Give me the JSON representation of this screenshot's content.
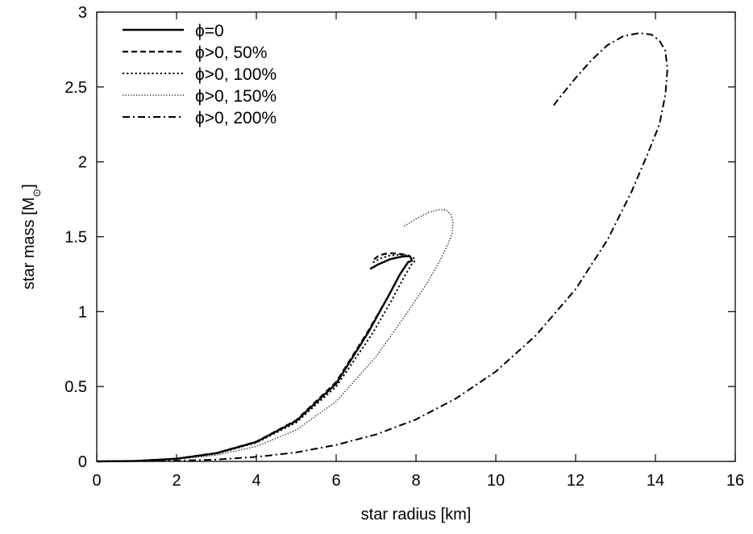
{
  "chart_data": {
    "type": "line",
    "title": "",
    "xlabel": "star radius [km]",
    "ylabel_main": "star mass [M",
    "ylabel_sub": "⊙",
    "ylabel_close": "]",
    "xlim": [
      0,
      16
    ],
    "ylim": [
      0,
      3
    ],
    "xticks": [
      0,
      2,
      4,
      6,
      8,
      10,
      12,
      14,
      16
    ],
    "yticks": [
      0,
      0.5,
      1,
      1.5,
      2,
      2.5,
      3
    ],
    "ytick_labels": [
      "0",
      "0.5",
      "1",
      "1.5",
      "2",
      "2.5",
      "3"
    ],
    "grid": false,
    "legend_position": "top-left",
    "series": [
      {
        "name": "ϕ=0",
        "dash": "solid",
        "x": [
          0,
          1,
          2,
          3,
          4,
          5,
          6,
          6.8,
          7.3,
          7.6,
          7.8,
          7.9,
          7.85,
          7.75,
          7.6,
          7.35,
          7.05,
          6.85
        ],
        "y": [
          0,
          0.003,
          0.018,
          0.055,
          0.13,
          0.27,
          0.52,
          0.86,
          1.1,
          1.25,
          1.33,
          1.34,
          1.37,
          1.37,
          1.365,
          1.35,
          1.315,
          1.285
        ]
      },
      {
        "name": "ϕ>0, 50%",
        "dash": "dashed",
        "x": [
          0,
          1,
          2,
          3,
          4,
          5,
          6,
          6.8,
          7.3,
          7.6,
          7.8,
          7.9,
          7.85,
          7.75,
          7.6,
          7.4,
          7.2,
          7.05,
          6.95
        ],
        "y": [
          0,
          0.003,
          0.018,
          0.056,
          0.132,
          0.275,
          0.53,
          0.87,
          1.1,
          1.25,
          1.33,
          1.34,
          1.37,
          1.38,
          1.385,
          1.39,
          1.385,
          1.37,
          1.35
        ]
      },
      {
        "name": "ϕ>0, 100%",
        "dash": "dotted",
        "x": [
          0,
          1,
          2,
          3,
          4,
          5,
          6,
          6.9,
          7.4,
          7.7,
          7.9,
          7.98,
          7.93,
          7.8,
          7.6,
          7.35,
          7.1,
          6.9
        ],
        "y": [
          0,
          0.003,
          0.017,
          0.052,
          0.125,
          0.26,
          0.5,
          0.85,
          1.08,
          1.23,
          1.32,
          1.34,
          1.36,
          1.375,
          1.38,
          1.375,
          1.355,
          1.325
        ]
      },
      {
        "name": "ϕ>0, 150%",
        "dash": "fine-dotted",
        "x": [
          0,
          1,
          2,
          3,
          4,
          5,
          6,
          7,
          7.8,
          8.3,
          8.6,
          8.8,
          8.9,
          8.93,
          8.87,
          8.75,
          8.55,
          8.3,
          8.0,
          7.7
        ],
        "y": [
          0,
          0.002,
          0.013,
          0.042,
          0.1,
          0.21,
          0.4,
          0.7,
          1.0,
          1.2,
          1.34,
          1.45,
          1.52,
          1.6,
          1.65,
          1.68,
          1.68,
          1.66,
          1.62,
          1.57
        ]
      },
      {
        "name": "ϕ>0, 200%",
        "dash": "dash-dot",
        "x": [
          0,
          2,
          3,
          4,
          5,
          6,
          7,
          8,
          9,
          10,
          11,
          12,
          12.8,
          13.4,
          13.8,
          14.1,
          14.25,
          14.3,
          14.25,
          14.1,
          13.9,
          13.6,
          13.2,
          12.8,
          12.4,
          12.0,
          11.6,
          11.4
        ],
        "y": [
          0,
          0.004,
          0.012,
          0.03,
          0.06,
          0.11,
          0.18,
          0.28,
          0.42,
          0.6,
          0.84,
          1.15,
          1.48,
          1.8,
          2.05,
          2.25,
          2.45,
          2.62,
          2.74,
          2.81,
          2.85,
          2.86,
          2.84,
          2.78,
          2.68,
          2.56,
          2.43,
          2.36
        ]
      }
    ]
  }
}
